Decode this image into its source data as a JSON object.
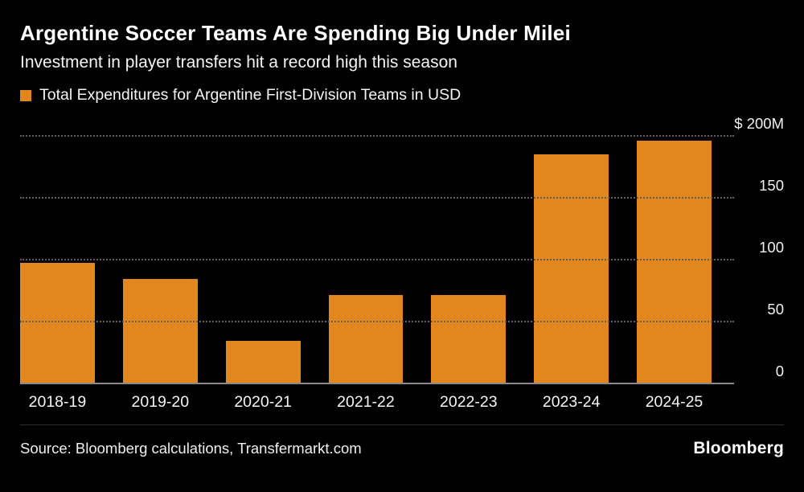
{
  "header": {
    "title": "Argentine Soccer Teams Are Spending Big Under Milei",
    "subtitle": "Investment in player transfers hit a record high this season"
  },
  "legend": {
    "label": "Total Expenditures for Argentine First-Division Teams in USD",
    "swatch_color": "#E2871E"
  },
  "chart_data": {
    "type": "bar",
    "title": "Total Expenditures for Argentine First-Division Teams in USD",
    "categories": [
      "2018-19",
      "2019-20",
      "2020-21",
      "2021-22",
      "2022-23",
      "2023-24",
      "2024-25"
    ],
    "values": [
      98,
      85,
      35,
      72,
      72,
      186,
      197
    ],
    "unit": "USD millions",
    "ylim": [
      0,
      200
    ],
    "yticks": [
      {
        "value": 0,
        "label": "0"
      },
      {
        "value": 50,
        "label": "50"
      },
      {
        "value": 100,
        "label": "100"
      },
      {
        "value": 150,
        "label": "150"
      },
      {
        "value": 200,
        "label": "$ 200M"
      }
    ],
    "bar_color": "#E2871E",
    "grid": "dotted-horizontal",
    "legend_position": "top-left",
    "axis_labels_position": "right"
  },
  "footer": {
    "source": "Source: Bloomberg calculations, Transfermarkt.com",
    "brand": "Bloomberg"
  }
}
